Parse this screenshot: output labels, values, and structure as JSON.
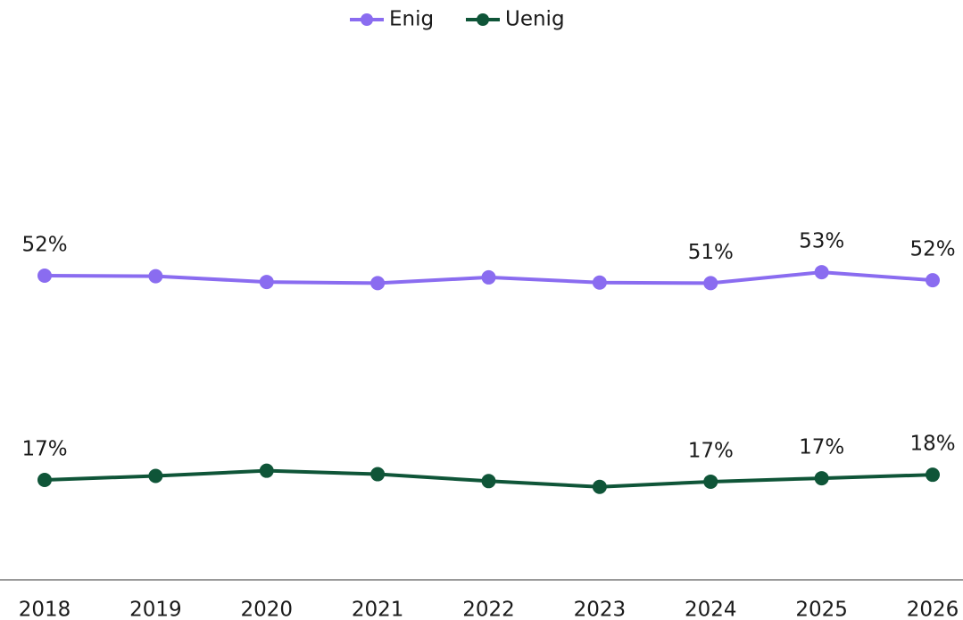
{
  "chart_data": {
    "type": "line",
    "categories": [
      "2018",
      "2019",
      "2020",
      "2021",
      "2022",
      "2023",
      "2024",
      "2025",
      "2026"
    ],
    "series": [
      {
        "name": "Enig",
        "color": "#8a6cf0",
        "values": [
          52.4,
          52.3,
          51.3,
          51.1,
          52.1,
          51.2,
          51.1,
          53.0,
          51.6
        ],
        "value_labels": [
          "52%",
          null,
          null,
          null,
          null,
          null,
          "51%",
          "53%",
          "52%"
        ]
      },
      {
        "name": "Uenig",
        "color": "#0f5538",
        "values": [
          17.0,
          17.7,
          18.6,
          18.0,
          16.8,
          15.8,
          16.7,
          17.3,
          17.9
        ],
        "value_labels": [
          "17%",
          null,
          null,
          null,
          null,
          null,
          "17%",
          "17%",
          "18%"
        ]
      }
    ],
    "ylim": [
      0,
      100
    ],
    "legend": "top"
  }
}
